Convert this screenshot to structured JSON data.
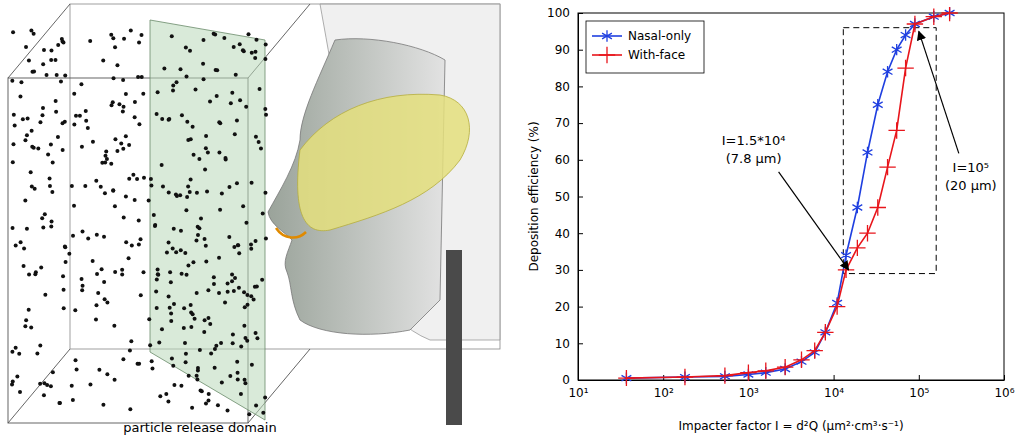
{
  "chart_data": {
    "type": "line",
    "x": [
      37,
      180,
      530,
      1000,
      1600,
      2700,
      4200,
      6000,
      8000,
      11000,
      14000,
      19000,
      25000,
      33000,
      43000,
      55000,
      70000,
      90000,
      150000,
      230000
    ],
    "series": [
      {
        "name": "Nasal-only",
        "color": "#1f3fe0",
        "marker": "asterisk",
        "line_style": "solid",
        "values": [
          0.5,
          0.8,
          1.0,
          1.5,
          2.0,
          3.0,
          5.0,
          7.5,
          13,
          21,
          34,
          47,
          62,
          75,
          84,
          90,
          94,
          97,
          99,
          100
        ]
      },
      {
        "name": "With-face",
        "color": "#e8151b",
        "marker": "plus",
        "line_style": "solid",
        "values": [
          0.5,
          0.8,
          1.2,
          2.0,
          2.5,
          3.5,
          5.5,
          8.0,
          13,
          20,
          30,
          36,
          40,
          47,
          58,
          68,
          85,
          97,
          99,
          100
        ]
      }
    ],
    "xlabel": "Impacter factor I = d²Q (μm²·cm³·s⁻¹)",
    "ylabel": "Deposition efficiency (%)",
    "log": "x",
    "xlim": [
      10,
      1000000
    ],
    "xticks": [
      {
        "value": 10,
        "label": "10¹"
      },
      {
        "value": 100,
        "label": "10²"
      },
      {
        "value": 1000,
        "label": "10³"
      },
      {
        "value": 10000,
        "label": "10⁴"
      },
      {
        "value": 100000,
        "label": "10⁵"
      },
      {
        "value": 1000000,
        "label": "10⁶"
      }
    ],
    "ylim": [
      0,
      100
    ],
    "yticks": [
      0,
      10,
      20,
      30,
      40,
      50,
      60,
      70,
      80,
      90,
      100
    ],
    "grid": false,
    "legend": "top-left",
    "highlight": {
      "x": [
        13000,
        160000
      ],
      "y": [
        29,
        96
      ]
    },
    "annotations": [
      {
        "text": [
          "I=1.5*10⁴",
          "(7.8 μm)"
        ],
        "x": 15000,
        "y": 30
      },
      {
        "text": [
          "I=10⁵",
          "(20 μm)"
        ],
        "x": 100000,
        "y": 95
      }
    ]
  },
  "diagram": {
    "label": "particle release domain"
  }
}
